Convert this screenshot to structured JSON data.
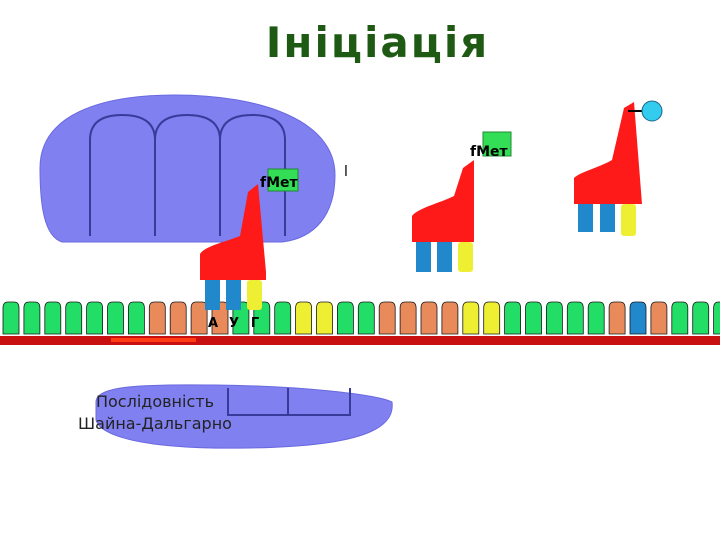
{
  "title": "Ініціація",
  "trna_labels": {
    "bound": "fМет",
    "middle": "fМет"
  },
  "stray_mark": "l",
  "codon": {
    "first": "А",
    "second": "У",
    "third": "Г"
  },
  "caption": {
    "line1": "Послідовність",
    "line2": "Шайна-Дальгарно"
  },
  "colors": {
    "title": "#1f5a14",
    "ribosome": "#8080f0",
    "mrna_strand": "#c81010",
    "shine_dalgarno_mark": "#ff3c14",
    "trna_body": "#ff1a1a",
    "amino_acid_tag": "#33dd55",
    "formyl_bead": "#33ccee",
    "base_green": "#22dd66",
    "base_orange": "#e88a5a",
    "base_blue": "#2288cc",
    "base_yellow": "#eeee33"
  }
}
